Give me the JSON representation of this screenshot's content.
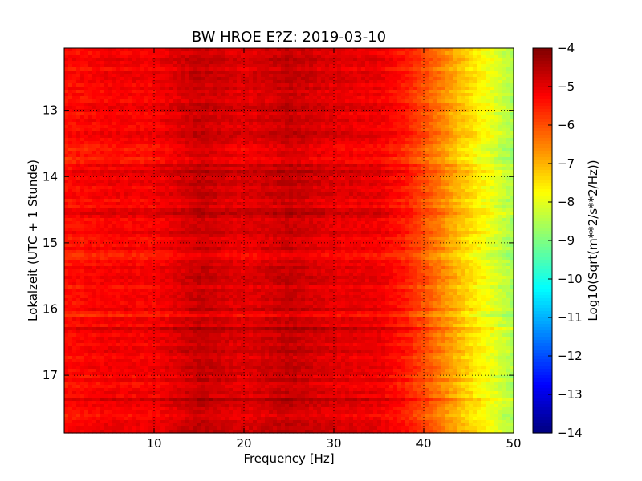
{
  "chart_data": {
    "type": "heatmap",
    "title": "BW HROE E?Z: 2019-03-10",
    "xlabel": "Frequency [Hz]",
    "ylabel": "Lokalzeit (UTC + 1 Stunde)",
    "xlim": [
      0,
      50
    ],
    "ylim": [
      12.06,
      17.87
    ],
    "y_inverted": true,
    "x_ticks": [
      10,
      20,
      30,
      40,
      50
    ],
    "x_tick_labels": [
      "10",
      "20",
      "30",
      "40",
      "50"
    ],
    "y_ticks": [
      13,
      14,
      15,
      16,
      17
    ],
    "y_tick_labels": [
      "13",
      "14",
      "15",
      "16",
      "17"
    ],
    "grid": true,
    "colormap": "jet",
    "colorbar": {
      "label": "Log10(Sqrt(m**2/s**2/Hz))",
      "min": -14,
      "max": -4,
      "ticks": [
        -4,
        -5,
        -6,
        -7,
        -8,
        -9,
        -10,
        -11,
        -12,
        -13,
        -14
      ],
      "tick_labels": [
        "−4",
        "−5",
        "−6",
        "−7",
        "−8",
        "−9",
        "−10",
        "−11",
        "−12",
        "−13",
        "−14"
      ]
    },
    "spectral_profile": {
      "frequency_hz": [
        0,
        5,
        10,
        15,
        20,
        25,
        30,
        35,
        38,
        40,
        42,
        44,
        46,
        48,
        50
      ],
      "log10_amplitude": [
        -5.4,
        -5.2,
        -5.2,
        -4.7,
        -5.0,
        -4.7,
        -5.0,
        -5.1,
        -5.5,
        -6.0,
        -6.5,
        -7.1,
        -7.6,
        -8.1,
        -8.6
      ]
    },
    "time_bands": [
      {
        "time": 13.55,
        "level": "low"
      },
      {
        "time": 13.75,
        "level": "low"
      },
      {
        "time": 15.2,
        "level": "low"
      },
      {
        "time": 16.1,
        "level": "low"
      },
      {
        "time": 13.95,
        "level": "high"
      },
      {
        "time": 14.55,
        "level": "high"
      },
      {
        "time": 16.3,
        "level": "high"
      },
      {
        "time": 17.38,
        "level": "high"
      }
    ]
  }
}
